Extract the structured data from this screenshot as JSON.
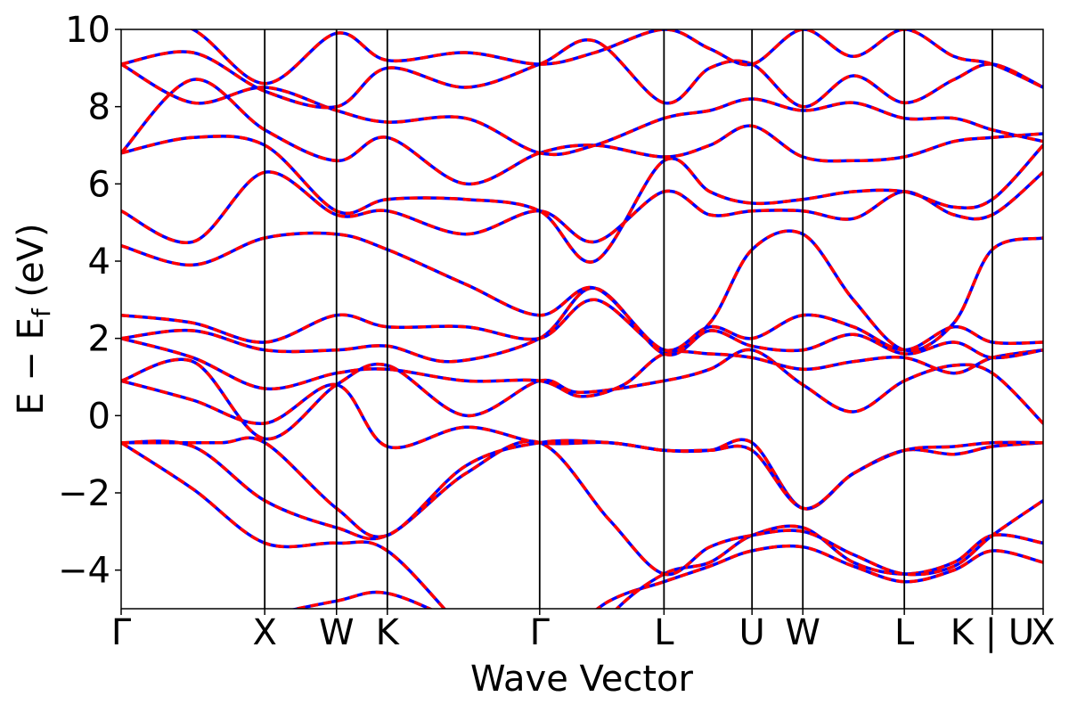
{
  "chart_data": {
    "type": "line",
    "xlabel": "Wave Vector",
    "ylabel_main": "E − E",
    "ylabel_sub": "f",
    "ylabel_unit": " (eV)",
    "ylim": [
      -5,
      10
    ],
    "yticks": [
      10,
      8,
      6,
      4,
      2,
      0,
      -2,
      -4
    ],
    "ytick_labels": [
      "10",
      "8",
      "6",
      "4",
      "2",
      "0",
      "−2",
      "−4"
    ],
    "kpoints": [
      {
        "label": "Γ",
        "x": 0.0
      },
      {
        "label": "X",
        "x": 1.0
      },
      {
        "label": "W",
        "x": 1.5
      },
      {
        "label": "K",
        "x": 1.854
      },
      {
        "label": "Γ",
        "x": 2.915
      },
      {
        "label": "L",
        "x": 3.781
      },
      {
        "label": "U",
        "x": 4.394
      },
      {
        "label": "W",
        "x": 4.748
      },
      {
        "label": "L",
        "x": 5.455
      },
      {
        "label": "K | U",
        "x": 6.068
      },
      {
        "label": "X",
        "x": 6.422
      }
    ],
    "x_range": [
      0,
      6.422
    ],
    "grid": false,
    "legend": "none",
    "series": [
      {
        "color": "#0000ff",
        "style": "solid",
        "bands": "same as dashed series"
      },
      {
        "color": "#ff0000",
        "style": "dashed",
        "bands": "overlaid on solid series"
      }
    ],
    "bands": [
      [
        [
          0,
          -6.6
        ],
        [
          0.5,
          -5.8
        ],
        [
          1.0,
          -5.2
        ],
        [
          1.5,
          -4.8
        ],
        [
          1.854,
          -4.6
        ],
        [
          2.4,
          -5.4
        ],
        [
          2.915,
          -6.0
        ],
        [
          3.4,
          -4.8
        ],
        [
          3.781,
          -4.3
        ],
        [
          4.1,
          -3.9
        ],
        [
          4.394,
          -3.5
        ],
        [
          4.748,
          -3.4
        ],
        [
          5.1,
          -3.9
        ],
        [
          5.455,
          -4.3
        ],
        [
          5.8,
          -4.0
        ],
        [
          6.068,
          -3.5
        ],
        [
          6.422,
          -3.8
        ]
      ],
      [
        [
          0,
          -0.7
        ],
        [
          0.5,
          -1.9
        ],
        [
          1.0,
          -3.3
        ],
        [
          1.5,
          -3.3
        ],
        [
          1.854,
          -3.5
        ],
        [
          2.4,
          -5.6
        ],
        [
          2.915,
          -7.5
        ],
        [
          3.4,
          -5.2
        ],
        [
          3.781,
          -4.1
        ],
        [
          4.1,
          -3.8
        ],
        [
          4.394,
          -3.1
        ],
        [
          4.748,
          -2.9
        ],
        [
          5.1,
          -3.8
        ],
        [
          5.455,
          -4.1
        ],
        [
          5.8,
          -3.8
        ],
        [
          6.068,
          -3.1
        ],
        [
          6.422,
          -3.3
        ]
      ],
      [
        [
          0,
          -0.7
        ],
        [
          0.5,
          -0.8
        ],
        [
          1.0,
          -2.2
        ],
        [
          1.5,
          -2.9
        ],
        [
          1.854,
          -3.1
        ],
        [
          2.4,
          -1.5
        ],
        [
          2.915,
          -0.7
        ],
        [
          3.4,
          -2.7
        ],
        [
          3.781,
          -4.1
        ],
        [
          4.1,
          -3.4
        ],
        [
          4.394,
          -3.1
        ],
        [
          4.748,
          -3.0
        ],
        [
          5.1,
          -3.6
        ],
        [
          5.455,
          -4.1
        ],
        [
          5.8,
          -3.9
        ],
        [
          6.068,
          -3.1
        ],
        [
          6.422,
          -2.2
        ]
      ],
      [
        [
          0,
          -0.7
        ],
        [
          0.3,
          -0.7
        ],
        [
          0.7,
          -0.7
        ],
        [
          1.0,
          -0.7
        ],
        [
          1.5,
          -2.4
        ],
        [
          1.854,
          -3.1
        ],
        [
          2.4,
          -1.3
        ],
        [
          2.915,
          -0.7
        ],
        [
          3.4,
          -0.7
        ],
        [
          3.781,
          -0.9
        ],
        [
          4.1,
          -0.9
        ],
        [
          4.394,
          -0.7
        ],
        [
          4.748,
          -2.4
        ],
        [
          5.1,
          -1.5
        ],
        [
          5.455,
          -0.9
        ],
        [
          5.8,
          -1.0
        ],
        [
          6.068,
          -0.8
        ],
        [
          6.422,
          -0.7
        ]
      ],
      [
        [
          0,
          0.9
        ],
        [
          0.5,
          0.4
        ],
        [
          1.0,
          -0.2
        ],
        [
          1.5,
          0.8
        ],
        [
          1.854,
          -0.8
        ],
        [
          2.4,
          -0.3
        ],
        [
          2.915,
          -0.7
        ],
        [
          3.4,
          -0.7
        ],
        [
          3.781,
          -0.9
        ],
        [
          4.1,
          -0.9
        ],
        [
          4.394,
          -0.9
        ],
        [
          4.748,
          -2.4
        ],
        [
          5.1,
          -1.5
        ],
        [
          5.455,
          -0.9
        ],
        [
          5.8,
          -0.8
        ],
        [
          6.068,
          -0.7
        ],
        [
          6.422,
          -0.7
        ]
      ],
      [
        [
          0,
          0.9
        ],
        [
          0.5,
          1.4
        ],
        [
          1.0,
          -0.6
        ],
        [
          1.5,
          0.8
        ],
        [
          1.854,
          1.3
        ],
        [
          2.4,
          0.0
        ],
        [
          2.915,
          0.9
        ],
        [
          3.2,
          0.6
        ],
        [
          3.781,
          0.9
        ],
        [
          4.1,
          1.2
        ],
        [
          4.394,
          1.7
        ],
        [
          4.748,
          0.8
        ],
        [
          5.1,
          0.1
        ],
        [
          5.455,
          0.9
        ],
        [
          5.8,
          1.3
        ],
        [
          6.068,
          1.1
        ],
        [
          6.422,
          -0.2
        ]
      ],
      [
        [
          0,
          2.0
        ],
        [
          0.5,
          1.5
        ],
        [
          1.0,
          0.7
        ],
        [
          1.5,
          1.1
        ],
        [
          1.854,
          1.2
        ],
        [
          2.4,
          0.9
        ],
        [
          2.915,
          0.9
        ],
        [
          3.2,
          0.5
        ],
        [
          3.5,
          0.8
        ],
        [
          3.781,
          1.6
        ],
        [
          4.1,
          1.6
        ],
        [
          4.394,
          1.5
        ],
        [
          4.748,
          1.2
        ],
        [
          5.1,
          1.4
        ],
        [
          5.455,
          1.5
        ],
        [
          5.8,
          1.1
        ],
        [
          6.068,
          1.5
        ],
        [
          6.422,
          1.7
        ]
      ],
      [
        [
          0,
          2.0
        ],
        [
          0.5,
          2.2
        ],
        [
          1.0,
          1.7
        ],
        [
          1.5,
          1.7
        ],
        [
          1.854,
          1.8
        ],
        [
          2.3,
          1.4
        ],
        [
          2.915,
          2.0
        ],
        [
          3.3,
          3.3
        ],
        [
          3.781,
          1.6
        ],
        [
          4.1,
          2.2
        ],
        [
          4.394,
          1.8
        ],
        [
          4.748,
          1.7
        ],
        [
          5.1,
          2.1
        ],
        [
          5.455,
          1.6
        ],
        [
          5.8,
          1.9
        ],
        [
          6.068,
          1.5
        ],
        [
          6.422,
          1.7
        ]
      ],
      [
        [
          0,
          2.6
        ],
        [
          0.5,
          2.4
        ],
        [
          1.0,
          1.9
        ],
        [
          1.5,
          2.6
        ],
        [
          1.854,
          2.3
        ],
        [
          2.4,
          2.3
        ],
        [
          2.915,
          2.0
        ],
        [
          3.3,
          3.0
        ],
        [
          3.781,
          1.7
        ],
        [
          4.1,
          2.3
        ],
        [
          4.394,
          2.0
        ],
        [
          4.748,
          2.6
        ],
        [
          5.1,
          2.3
        ],
        [
          5.455,
          1.7
        ],
        [
          5.8,
          2.3
        ],
        [
          6.068,
          1.9
        ],
        [
          6.422,
          1.9
        ]
      ],
      [
        [
          0,
          4.4
        ],
        [
          0.5,
          3.9
        ],
        [
          1.0,
          4.6
        ],
        [
          1.5,
          4.7
        ],
        [
          1.854,
          4.3
        ],
        [
          2.4,
          3.4
        ],
        [
          2.915,
          2.6
        ],
        [
          3.3,
          3.3
        ],
        [
          3.781,
          1.7
        ],
        [
          4.1,
          2.4
        ],
        [
          4.394,
          4.3
        ],
        [
          4.748,
          4.7
        ],
        [
          5.1,
          3.0
        ],
        [
          5.455,
          1.7
        ],
        [
          5.8,
          2.4
        ],
        [
          6.068,
          4.3
        ],
        [
          6.422,
          4.6
        ]
      ],
      [
        [
          0,
          5.3
        ],
        [
          0.5,
          4.5
        ],
        [
          1.0,
          6.3
        ],
        [
          1.5,
          5.2
        ],
        [
          1.854,
          5.3
        ],
        [
          2.4,
          4.7
        ],
        [
          2.915,
          5.3
        ],
        [
          3.3,
          4.5
        ],
        [
          3.781,
          5.8
        ],
        [
          4.1,
          5.2
        ],
        [
          4.394,
          5.3
        ],
        [
          4.748,
          5.3
        ],
        [
          5.1,
          5.1
        ],
        [
          5.455,
          5.8
        ],
        [
          5.8,
          5.2
        ],
        [
          6.068,
          5.2
        ],
        [
          6.422,
          6.3
        ]
      ],
      [
        [
          0,
          6.8
        ],
        [
          0.5,
          7.2
        ],
        [
          1.0,
          7.0
        ],
        [
          1.5,
          5.3
        ],
        [
          1.854,
          5.6
        ],
        [
          2.4,
          5.6
        ],
        [
          2.915,
          5.3
        ],
        [
          3.3,
          4.0
        ],
        [
          3.781,
          6.6
        ],
        [
          4.1,
          5.8
        ],
        [
          4.394,
          5.5
        ],
        [
          4.748,
          5.6
        ],
        [
          5.1,
          5.8
        ],
        [
          5.455,
          5.8
        ],
        [
          5.8,
          5.4
        ],
        [
          6.068,
          5.6
        ],
        [
          6.422,
          7.0
        ]
      ],
      [
        [
          0,
          6.8
        ],
        [
          0.5,
          8.7
        ],
        [
          1.0,
          7.4
        ],
        [
          1.5,
          6.6
        ],
        [
          1.854,
          7.2
        ],
        [
          2.4,
          6.0
        ],
        [
          2.915,
          6.8
        ],
        [
          3.3,
          7.0
        ],
        [
          3.781,
          6.7
        ],
        [
          4.1,
          7.0
        ],
        [
          4.394,
          7.5
        ],
        [
          4.748,
          6.7
        ],
        [
          5.1,
          6.6
        ],
        [
          5.455,
          6.7
        ],
        [
          5.8,
          7.1
        ],
        [
          6.068,
          7.2
        ],
        [
          6.422,
          7.3
        ]
      ],
      [
        [
          0,
          9.1
        ],
        [
          0.5,
          8.1
        ],
        [
          1.0,
          8.5
        ],
        [
          1.5,
          7.9
        ],
        [
          1.854,
          7.6
        ],
        [
          2.4,
          7.7
        ],
        [
          2.915,
          6.8
        ],
        [
          3.3,
          7.0
        ],
        [
          3.781,
          7.7
        ],
        [
          4.1,
          7.9
        ],
        [
          4.394,
          8.2
        ],
        [
          4.748,
          7.9
        ],
        [
          5.1,
          8.1
        ],
        [
          5.455,
          7.7
        ],
        [
          5.8,
          7.7
        ],
        [
          6.068,
          7.4
        ],
        [
          6.422,
          7.1
        ]
      ],
      [
        [
          0,
          9.1
        ],
        [
          0.5,
          9.4
        ],
        [
          1.0,
          8.4
        ],
        [
          1.5,
          8.0
        ],
        [
          1.854,
          9.0
        ],
        [
          2.4,
          8.5
        ],
        [
          2.915,
          9.1
        ],
        [
          3.3,
          9.7
        ],
        [
          3.781,
          8.1
        ],
        [
          4.1,
          9.0
        ],
        [
          4.394,
          9.1
        ],
        [
          4.748,
          8.0
        ],
        [
          5.1,
          8.8
        ],
        [
          5.455,
          8.1
        ],
        [
          5.8,
          8.7
        ],
        [
          6.068,
          9.1
        ],
        [
          6.422,
          8.5
        ]
      ],
      [
        [
          0,
          10.5
        ],
        [
          0.5,
          10.0
        ],
        [
          1.0,
          8.6
        ],
        [
          1.5,
          9.9
        ],
        [
          1.854,
          9.2
        ],
        [
          2.4,
          9.4
        ],
        [
          2.915,
          9.1
        ],
        [
          3.3,
          9.4
        ],
        [
          3.781,
          10.0
        ],
        [
          4.1,
          9.5
        ],
        [
          4.394,
          9.1
        ],
        [
          4.748,
          10.0
        ],
        [
          5.1,
          9.3
        ],
        [
          5.455,
          10.0
        ],
        [
          5.8,
          9.3
        ],
        [
          6.068,
          9.1
        ],
        [
          6.422,
          8.5
        ]
      ]
    ]
  }
}
